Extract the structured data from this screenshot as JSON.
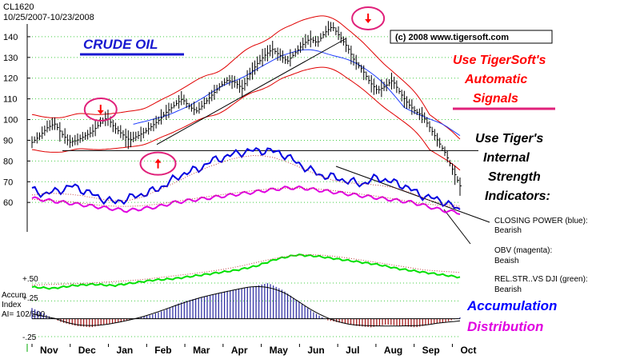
{
  "header": {
    "symbol": "CL1620",
    "date_range": "10/25/2007-10/23/2008"
  },
  "copyright": "(c) 2008 www.tigersoft.com",
  "annotations": {
    "crude_oil": "CRUDE OIL",
    "automatic_signals": [
      "Use TigerSoft's",
      "Automatic",
      "Signals"
    ],
    "internal_strength": [
      "Use Tiger's",
      "Internal",
      "Strength",
      "Indicators:"
    ],
    "closing_power": [
      "CLOSING POWER (blue):",
      "Bearish"
    ],
    "obv": [
      "OBV (magenta):",
      "Beaish"
    ],
    "rel_str": [
      "REL.STR..VS DJI (green):",
      "Bearish"
    ],
    "accumulation": "Accumulation",
    "distribution": "Distribution"
  },
  "accum_label": [
    "Accum",
    "Index",
    "AI= 102/200"
  ],
  "colors": {
    "price_bars": "#000000",
    "bands": "#e00000",
    "ma_blue": "#1e3cff",
    "closing_power": "#0000e0",
    "obv": "#e000e0",
    "rel_str": "#00e000",
    "accum_pos": "#2a2aa0",
    "accum_neg": "#a01010",
    "red_text": "#ff0000",
    "blue_text": "#0000ff",
    "magenta_text": "#e000e0",
    "signal_circle": "#e0207a"
  },
  "chart_data": {
    "type": "line",
    "title": "CL1620",
    "subtitle": "10/25/2007-10/23/2008",
    "y_ticks": [
      140,
      130,
      120,
      110,
      100,
      90,
      80,
      70,
      60
    ],
    "y_range": [
      40,
      150
    ],
    "accum_ticks": [
      "+.50",
      "+.25",
      "-.25"
    ],
    "accum_range": [
      -0.35,
      0.6
    ],
    "months": [
      "Nov",
      "Dec",
      "Jan",
      "Feb",
      "Mar",
      "Apr",
      "May",
      "Jun",
      "Jul",
      "Aug",
      "Sep",
      "Oct"
    ],
    "price_close": [
      89,
      92,
      96,
      98,
      93,
      89,
      90,
      92,
      94,
      98,
      101,
      96,
      93,
      90,
      92,
      94,
      97,
      100,
      104,
      107,
      110,
      106,
      104,
      108,
      112,
      116,
      119,
      118,
      115,
      122,
      127,
      131,
      134,
      131,
      128,
      132,
      136,
      139,
      137,
      142,
      145,
      140,
      135,
      128,
      124,
      118,
      114,
      116,
      119,
      113,
      108,
      104,
      102,
      96,
      90,
      84,
      76,
      68
    ],
    "horizontal_line": 85,
    "closing_power": [
      66,
      64,
      66,
      68,
      65,
      62,
      60,
      62,
      64,
      66,
      70,
      74,
      76,
      80,
      82,
      84,
      85,
      85,
      84,
      80,
      76,
      73,
      72,
      70,
      69,
      72,
      70,
      68,
      64,
      62,
      60,
      56
    ],
    "obv": [
      62,
      61,
      60,
      59,
      58,
      57,
      56,
      57,
      58,
      60,
      61,
      62,
      63,
      64,
      65,
      66,
      67,
      67,
      66,
      65,
      64,
      63,
      62,
      61,
      60,
      58,
      56,
      55
    ],
    "rel_str_dji": [
      0.42,
      0.41,
      0.43,
      0.44,
      0.43,
      0.45,
      0.47,
      0.48,
      0.5,
      0.52,
      0.54,
      0.57,
      0.62,
      0.65,
      0.64,
      0.62,
      0.6,
      0.58,
      0.55,
      0.53,
      0.51,
      0.49
    ],
    "accum_index": [
      0.15,
      0.05,
      -0.05,
      -0.1,
      -0.12,
      -0.08,
      -0.05,
      0.0,
      0.05,
      0.12,
      0.22,
      0.28,
      0.32,
      0.38,
      0.42,
      0.45,
      0.5,
      0.4,
      0.25,
      0.1,
      -0.02,
      -0.06,
      -0.1,
      -0.12,
      -0.08,
      -0.1,
      -0.12,
      -0.08,
      -0.05,
      0.02
    ],
    "sell_signals": [
      {
        "month": "Dec",
        "price": 101
      },
      {
        "month": "Jul",
        "price": 145
      }
    ],
    "buy_signals": [
      {
        "month": "Jan",
        "price": 88
      }
    ]
  }
}
